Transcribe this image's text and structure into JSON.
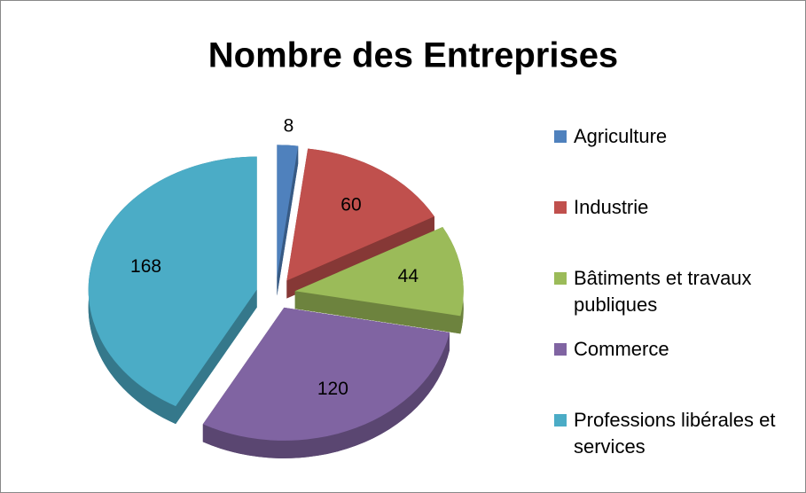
{
  "chart_data": {
    "type": "pie",
    "title": "Nombre des Entreprises",
    "categories": [
      "Agriculture",
      "Industrie",
      "Bâtiments et travaux publiques",
      "Commerce",
      "Professions libérales et services"
    ],
    "values": [
      8,
      60,
      44,
      120,
      168
    ],
    "colors": [
      "#4f81bd",
      "#c0504d",
      "#9bbb59",
      "#8064a2",
      "#4bacc6"
    ],
    "legend": "right"
  }
}
